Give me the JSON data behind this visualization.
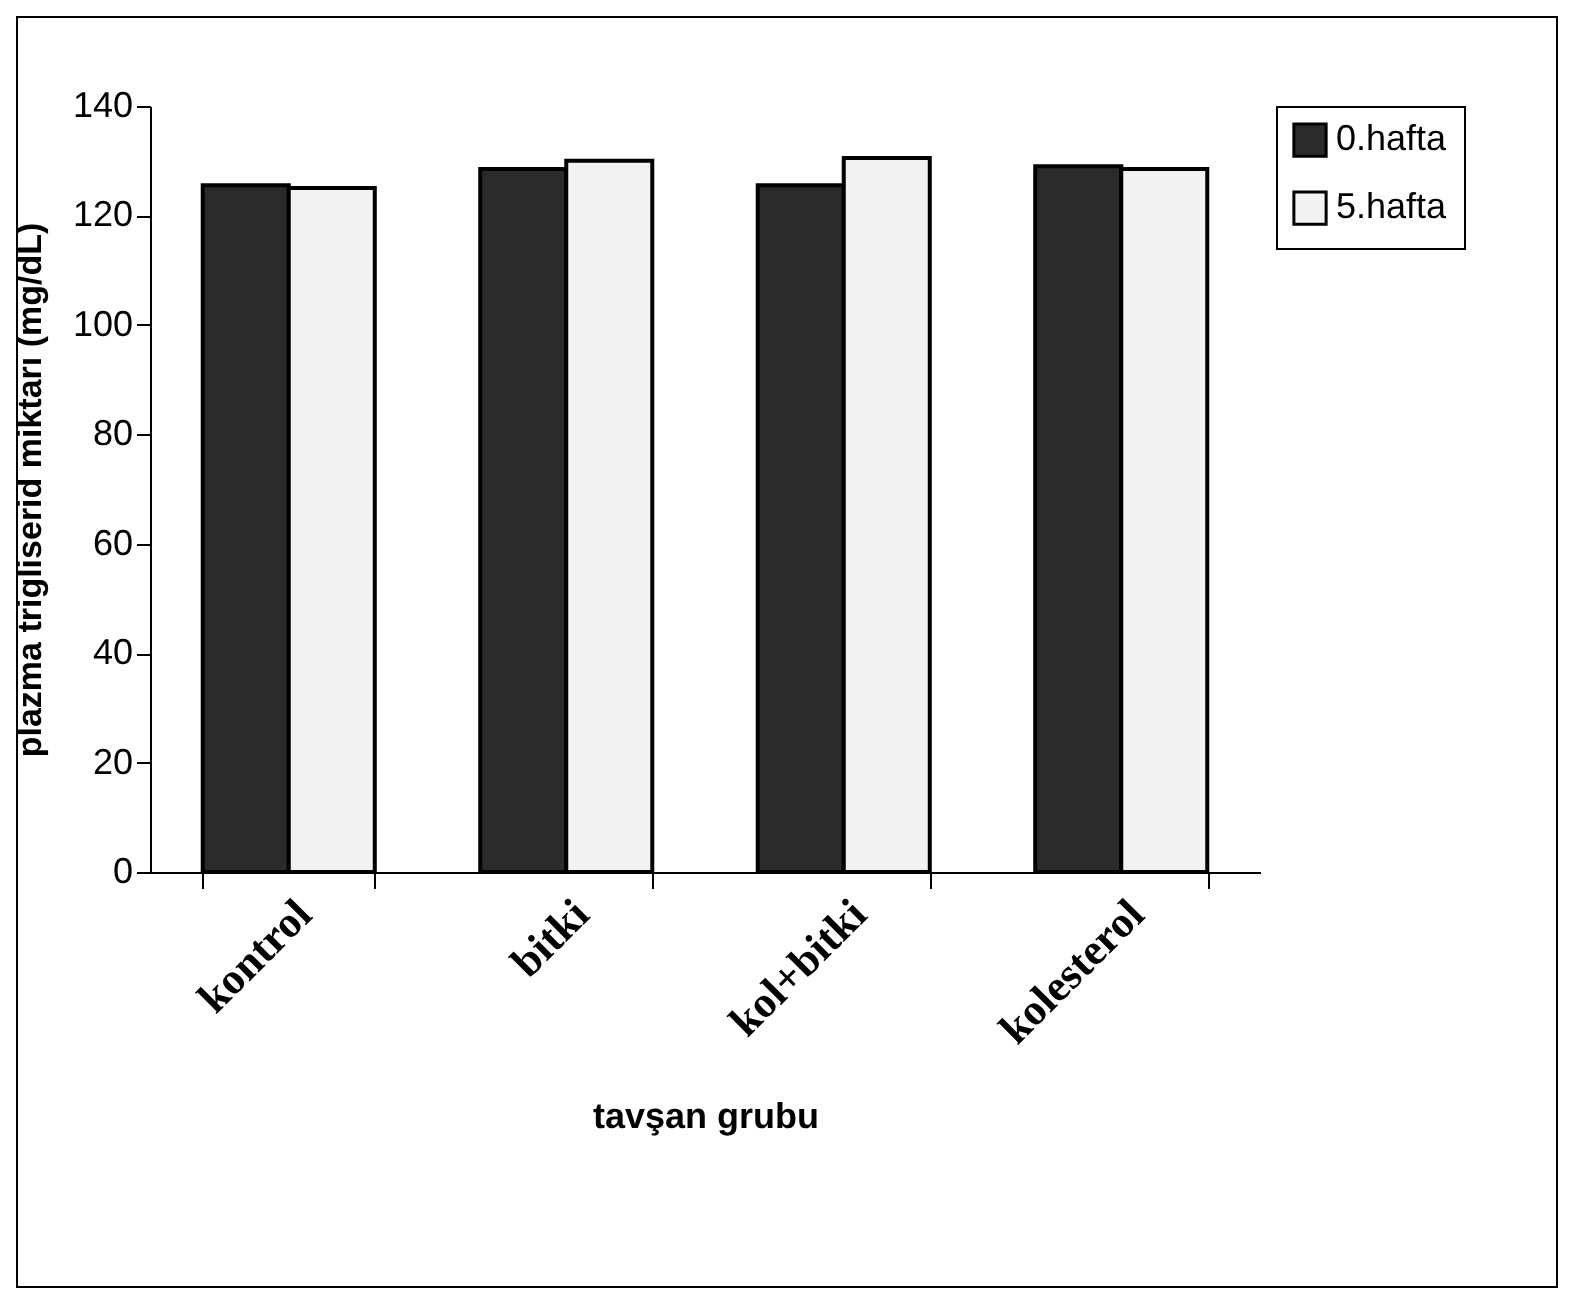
{
  "chart_data": {
    "type": "bar",
    "xlabel": "tavşan grubu",
    "ylabel": "plazma trigliserid miktarı (mg/dL)",
    "categories": [
      "kontrol",
      "bitki",
      "kol+bitki",
      "kolesterol"
    ],
    "series": [
      {
        "name": "0.hafta",
        "color": "#2b2b2b",
        "values": [
          125.5,
          128.5,
          125.5,
          129
        ]
      },
      {
        "name": "5.hafta",
        "color": "#f2f2f2",
        "values": [
          125,
          130,
          130.5,
          128.5
        ]
      }
    ],
    "ylim": [
      0,
      140
    ],
    "yticks": [
      0,
      20,
      40,
      60,
      80,
      100,
      120,
      140
    ],
    "grid": false,
    "legend": "right"
  }
}
